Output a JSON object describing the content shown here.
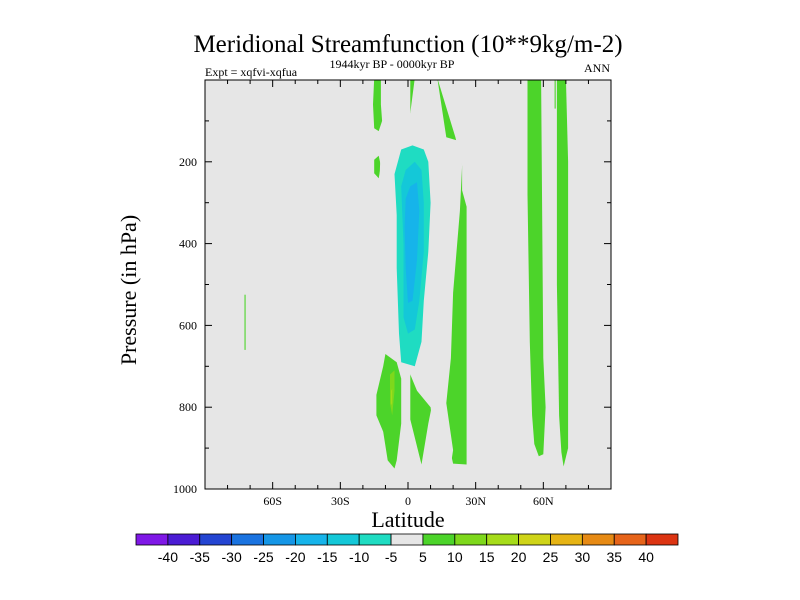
{
  "chart_data": {
    "type": "heatmap",
    "title": "Meridional Streamfunction (10**9kg/m-2)",
    "subtitle_left": "Expt = xqfvi-xqfua",
    "subtitle_center": "1944kyr BP - 0000kyr BP",
    "subtitle_right": "ANN",
    "xlabel": "Latitude",
    "ylabel": "Pressure (in hPa)",
    "xlim": [
      -90,
      90
    ],
    "ylim": [
      0,
      1000
    ],
    "y_inverted": true,
    "x_ticks": [
      {
        "value": -60,
        "label": "60S"
      },
      {
        "value": -30,
        "label": "30S"
      },
      {
        "value": 0,
        "label": "0"
      },
      {
        "value": 30,
        "label": "30N"
      },
      {
        "value": 60,
        "label": "60N"
      }
    ],
    "y_ticks": [
      {
        "value": 200,
        "label": "200"
      },
      {
        "value": 400,
        "label": "400"
      },
      {
        "value": 600,
        "label": "600"
      },
      {
        "value": 800,
        "label": "800"
      },
      {
        "value": 1000,
        "label": "1000"
      }
    ],
    "background_value": 0,
    "background_color": "#e6e6e6",
    "levels": [
      "-40",
      "-35",
      "-30",
      "-25",
      "-20",
      "-15",
      "-10",
      "-5",
      "5",
      "10",
      "15",
      "20",
      "25",
      "30",
      "35",
      "40"
    ],
    "level_colors": [
      "#7f18e6",
      "#4b1cd4",
      "#2445d2",
      "#1a73e0",
      "#1596e6",
      "#16b4ea",
      "#14c8d8",
      "#1fdcc2",
      "#e6e6e6",
      "#4cd42a",
      "#7ed81c",
      "#a6dc1a",
      "#cfd418",
      "#e6b414",
      "#e68a14",
      "#e6641a",
      "#dc3412"
    ],
    "regions": [
      {
        "name": "south-polar-filament",
        "value": -5,
        "points": [
          [
            -70.5,
            5
          ],
          [
            -69.5,
            5
          ],
          [
            -69,
            200
          ],
          [
            -69,
            550
          ],
          [
            -69,
            860
          ],
          [
            -70,
            860
          ],
          [
            -70.3,
            550
          ],
          [
            -70.5,
            200
          ]
        ]
      },
      {
        "name": "south-polar-positive-sliver",
        "value": 5,
        "points": [
          [
            -72.5,
            525
          ],
          [
            -72,
            525
          ],
          [
            -72,
            660
          ],
          [
            -72.5,
            660
          ]
        ]
      },
      {
        "name": "upper-midlat-cell-top",
        "value": 5,
        "points": [
          [
            -15,
            -5
          ],
          [
            -12,
            -5
          ],
          [
            -12,
            60
          ],
          [
            -11.5,
            100
          ],
          [
            -13,
            125
          ],
          [
            -15,
            118
          ],
          [
            -15.5,
            60
          ]
        ]
      },
      {
        "name": "upper-midlat-cell-small",
        "value": 5,
        "points": [
          [
            -15,
            195
          ],
          [
            -13,
            185
          ],
          [
            -12,
            210
          ],
          [
            -13,
            240
          ],
          [
            -15,
            228
          ]
        ]
      },
      {
        "name": "equatorial-tower-pos",
        "value": 5,
        "points": [
          [
            1,
            -5
          ],
          [
            13,
            -5
          ],
          [
            21,
            140
          ],
          [
            24,
            210
          ],
          [
            24,
            270
          ],
          [
            26,
            310
          ],
          [
            26,
            940
          ],
          [
            20,
            938
          ],
          [
            16,
            840
          ],
          [
            13,
            730
          ],
          [
            9,
            840
          ],
          [
            6,
            940
          ],
          [
            1,
            830
          ]
        ]
      },
      {
        "name": "equatorial-tower-neg5",
        "value": -5,
        "points": [
          [
            3,
            -5
          ],
          [
            13,
            -5
          ],
          [
            17,
            140
          ],
          [
            23,
            150
          ],
          [
            24,
            210
          ],
          [
            23,
            320
          ],
          [
            20,
            520
          ],
          [
            19,
            680
          ],
          [
            17,
            790
          ],
          [
            20,
            905
          ],
          [
            19,
            940
          ],
          [
            13,
            945
          ],
          [
            10,
            800
          ],
          [
            4,
            760
          ],
          [
            1,
            720
          ],
          [
            -5,
            700
          ],
          [
            -6,
            920
          ],
          [
            -9,
            960
          ],
          [
            -12,
            960
          ],
          [
            -13,
            420
          ],
          [
            -13,
            300
          ],
          [
            -12,
            150
          ],
          [
            -3,
            150
          ],
          [
            -1,
            110
          ],
          [
            1,
            80
          ]
        ]
      },
      {
        "name": "equatorial-tower-neg10",
        "value": -10,
        "points": [
          [
            -6,
            230
          ],
          [
            -3,
            170
          ],
          [
            2,
            160
          ],
          [
            7,
            170
          ],
          [
            9,
            200
          ],
          [
            10,
            300
          ],
          [
            9,
            420
          ],
          [
            7,
            540
          ],
          [
            6,
            640
          ],
          [
            3,
            700
          ],
          [
            -3,
            690
          ],
          [
            -4,
            620
          ],
          [
            -5,
            460
          ],
          [
            -5,
            330
          ]
        ]
      },
      {
        "name": "equatorial-tower-neg15",
        "value": -15,
        "points": [
          [
            -3,
            260
          ],
          [
            -1,
            220
          ],
          [
            3,
            200
          ],
          [
            6,
            220
          ],
          [
            7,
            300
          ],
          [
            7,
            420
          ],
          [
            5,
            540
          ],
          [
            3,
            610
          ],
          [
            0,
            620
          ],
          [
            -2,
            580
          ],
          [
            -2,
            400
          ]
        ]
      },
      {
        "name": "equatorial-tower-neg20",
        "value": -20,
        "points": [
          [
            -1,
            290
          ],
          [
            1,
            260
          ],
          [
            4,
            250
          ],
          [
            5,
            320
          ],
          [
            4,
            440
          ],
          [
            2,
            540
          ],
          [
            0,
            545
          ],
          [
            -1,
            460
          ],
          [
            -1.5,
            360
          ]
        ]
      },
      {
        "name": "lower-midlat-cell",
        "value": 5,
        "points": [
          [
            -14,
            770
          ],
          [
            -11,
            700
          ],
          [
            -10,
            670
          ],
          [
            -5,
            690
          ],
          [
            -3,
            730
          ],
          [
            -3,
            840
          ],
          [
            -5,
            930
          ],
          [
            -6,
            950
          ],
          [
            -9,
            930
          ],
          [
            -11,
            860
          ],
          [
            -14,
            820
          ]
        ]
      },
      {
        "name": "lower-midlat-cell-10",
        "value": 10,
        "points": [
          [
            -8,
            720
          ],
          [
            -6,
            710
          ],
          [
            -6,
            760
          ],
          [
            -7,
            820
          ],
          [
            -8,
            790
          ]
        ]
      },
      {
        "name": "lower-midlat-cell-15",
        "value": 15,
        "points": [
          [
            -7.5,
            760
          ],
          [
            -7,
            755
          ],
          [
            -7,
            790
          ],
          [
            -7.5,
            795
          ]
        ]
      },
      {
        "name": "subpolar-north-band-a",
        "value": 5,
        "points": [
          [
            53,
            -5
          ],
          [
            59,
            -5
          ],
          [
            60,
            680
          ],
          [
            61,
            800
          ],
          [
            60,
            915
          ],
          [
            58,
            920
          ],
          [
            56,
            890
          ],
          [
            55,
            820
          ],
          [
            54,
            640
          ],
          [
            53,
            280
          ]
        ]
      },
      {
        "name": "subpolar-north-band-b",
        "value": 5,
        "points": [
          [
            66,
            -5
          ],
          [
            70,
            -5
          ],
          [
            71,
            200
          ],
          [
            71,
            700
          ],
          [
            71,
            900
          ],
          [
            69,
            945
          ],
          [
            68,
            910
          ],
          [
            67,
            820
          ],
          [
            66,
            500
          ]
        ]
      },
      {
        "name": "subpolar-neg-sliver",
        "value": -5,
        "points": [
          [
            63,
            -5
          ],
          [
            64,
            -5
          ],
          [
            64,
            95
          ],
          [
            63,
            95
          ]
        ]
      },
      {
        "name": "subpolar-pos-sliver",
        "value": 5,
        "points": [
          [
            65,
            -5
          ],
          [
            65.5,
            -5
          ],
          [
            65.5,
            70
          ],
          [
            65,
            70
          ]
        ]
      }
    ]
  }
}
